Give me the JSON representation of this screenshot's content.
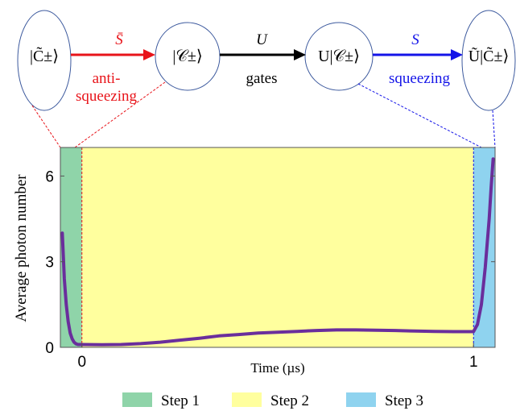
{
  "diagram": {
    "nodes": [
      {
        "label": "|C̃±⟩"
      },
      {
        "label": "|𝒞±⟩"
      },
      {
        "label": "U|𝒞±⟩"
      },
      {
        "label": "Ũ|C̃±⟩"
      }
    ],
    "arrows": [
      {
        "symbol": "S̄",
        "caption_lines": [
          "anti-",
          "squeezing"
        ],
        "color": "#e8141a"
      },
      {
        "symbol": "U",
        "caption_lines": [
          "gates"
        ],
        "color": "#000000"
      },
      {
        "symbol": "S",
        "caption_lines": [
          "squeezing"
        ],
        "color": "#1414e8"
      }
    ]
  },
  "chart_data": {
    "type": "line",
    "title": "",
    "xlabel": "Time (µs)",
    "ylabel": "Average photon number",
    "xlim": [
      -0.055,
      1.055
    ],
    "ylim": [
      0,
      7
    ],
    "x_ticks": [
      {
        "value": 0,
        "label": "0"
      },
      {
        "value": 1,
        "label": "1"
      }
    ],
    "y_ticks": [
      {
        "value": 0,
        "label": "0"
      },
      {
        "value": 3,
        "label": "3"
      },
      {
        "value": 6,
        "label": "6"
      }
    ],
    "grid": false,
    "regions": [
      {
        "name": "Step 1",
        "x_start": -0.055,
        "x_end": 0,
        "color": "#8fd4a9"
      },
      {
        "name": "Step 2",
        "x_start": 0,
        "x_end": 1,
        "color": "#ffff9e"
      },
      {
        "name": "Step 3",
        "x_start": 1,
        "x_end": 1.055,
        "color": "#8fd3ef"
      }
    ],
    "series": [
      {
        "color": "#6a2e9c",
        "x": [
          -0.05,
          -0.045,
          -0.04,
          -0.035,
          -0.03,
          -0.025,
          -0.02,
          -0.015,
          -0.01,
          -0.005,
          0.0,
          0.05,
          0.1,
          0.15,
          0.2,
          0.25,
          0.3,
          0.35,
          0.4,
          0.45,
          0.5,
          0.55,
          0.6,
          0.65,
          0.7,
          0.75,
          0.8,
          0.85,
          0.9,
          0.95,
          1.0,
          1.01,
          1.02,
          1.03,
          1.04,
          1.045,
          1.05
        ],
        "y": [
          4.0,
          2.4,
          1.5,
          0.9,
          0.5,
          0.3,
          0.18,
          0.12,
          0.1,
          0.1,
          0.1,
          0.09,
          0.1,
          0.13,
          0.18,
          0.25,
          0.32,
          0.4,
          0.45,
          0.5,
          0.53,
          0.56,
          0.59,
          0.61,
          0.61,
          0.6,
          0.59,
          0.57,
          0.56,
          0.55,
          0.55,
          0.8,
          1.5,
          2.8,
          4.5,
          5.6,
          6.6
        ]
      }
    ],
    "legend": {
      "placement": "bottom",
      "items": [
        "Step 1",
        "Step 2",
        "Step 3"
      ]
    }
  }
}
